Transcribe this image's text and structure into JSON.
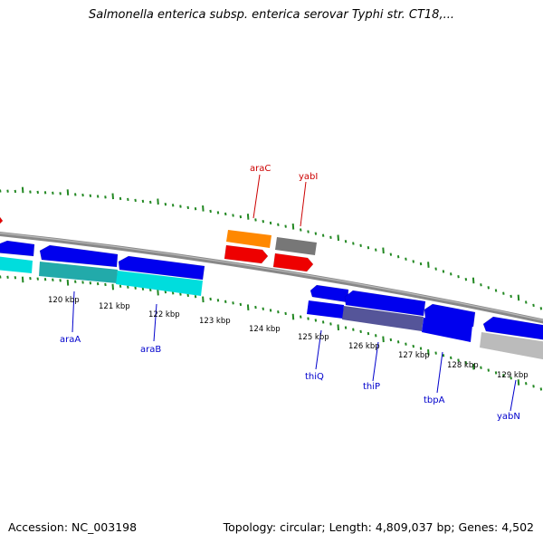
{
  "title": "Salmonella enterica subsp. enterica serovar Typhi str. CT18,...",
  "footer": {
    "accession": "Accession: NC_003198",
    "summary": "Topology: circular; Length: 4,809,037 bp; Genes: 4,502"
  },
  "colors": {
    "forward_gene": "#0000ee",
    "reverse_gene": "#0000ee",
    "cyan_gene": "#00dddd",
    "dark_cyan_gene": "#22aaaa",
    "orange_gene": "#ff8800",
    "red_gene": "#ee0000",
    "gray_gene": "#777777",
    "light_gray_gene": "#bbbbbb",
    "purple_gene": "#555599",
    "backbone": "#888888",
    "ticks": "#228822",
    "label_blue": "#0000cc",
    "label_red": "#cc0000"
  },
  "scale": {
    "ticks": [
      "120 kbp",
      "121 kbp",
      "122 kbp",
      "123 kbp",
      "124 kbp",
      "125 kbp",
      "126 kbp",
      "127 kbp",
      "128 kbp",
      "129 kbp"
    ]
  },
  "gene_labels": [
    {
      "name": "araC",
      "color": "red"
    },
    {
      "name": "yabI",
      "color": "red"
    },
    {
      "name": "araA",
      "color": "blue"
    },
    {
      "name": "araB",
      "color": "blue"
    },
    {
      "name": "thiQ",
      "color": "blue"
    },
    {
      "name": "thiP",
      "color": "blue"
    },
    {
      "name": "tbpA",
      "color": "blue"
    },
    {
      "name": "yabN",
      "color": "blue"
    }
  ]
}
